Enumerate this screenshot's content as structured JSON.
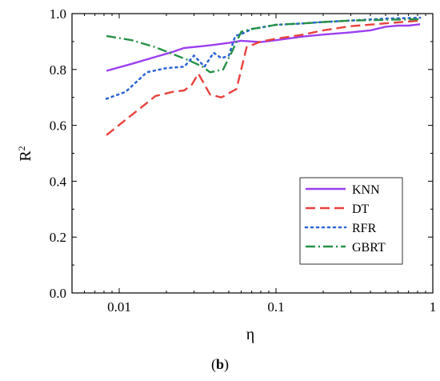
{
  "caption": {
    "open": "(",
    "letter": "b",
    "close": ")"
  },
  "chart_data": {
    "type": "line",
    "title": "",
    "xlabel": "η",
    "ylabel": "R",
    "ylabel_superscript": "2",
    "xscale": "log",
    "xlim": [
      0.005,
      1
    ],
    "ylim": [
      0.0,
      1.0
    ],
    "x_ticks": [
      0.01,
      0.1,
      1
    ],
    "x_tick_labels": [
      "0.01",
      "0.1",
      "1"
    ],
    "y_ticks": [
      0.0,
      0.2,
      0.4,
      0.6,
      0.8,
      1.0
    ],
    "y_tick_labels": [
      "0.0",
      "0.2",
      "0.4",
      "0.6",
      "0.8",
      "1.0"
    ],
    "grid": false,
    "legend_position": "lower-right",
    "series": [
      {
        "name": "KNN",
        "color": "#9b3ff0",
        "dash": "solid",
        "x": [
          0.0083,
          0.012,
          0.017,
          0.022,
          0.026,
          0.032,
          0.04,
          0.05,
          0.06,
          0.08,
          0.1,
          0.15,
          0.2,
          0.3,
          0.4,
          0.5,
          0.6,
          0.7,
          0.83
        ],
        "y": [
          0.795,
          0.82,
          0.845,
          0.863,
          0.877,
          0.882,
          0.888,
          0.895,
          0.903,
          0.898,
          0.905,
          0.918,
          0.925,
          0.933,
          0.94,
          0.953,
          0.957,
          0.957,
          0.962
        ]
      },
      {
        "name": "DT",
        "color": "#e8423e",
        "dash": "dashed",
        "x": [
          0.0083,
          0.011,
          0.015,
          0.017,
          0.022,
          0.026,
          0.029,
          0.032,
          0.038,
          0.045,
          0.052,
          0.056,
          0.065,
          0.08,
          0.1,
          0.15,
          0.2,
          0.3,
          0.5,
          0.83
        ],
        "y": [
          0.565,
          0.62,
          0.68,
          0.705,
          0.72,
          0.725,
          0.745,
          0.785,
          0.71,
          0.7,
          0.72,
          0.73,
          0.88,
          0.9,
          0.91,
          0.925,
          0.94,
          0.955,
          0.965,
          0.975
        ]
      },
      {
        "name": "RFR",
        "color": "#2c66d6",
        "dash": "dotted",
        "x": [
          0.0083,
          0.011,
          0.015,
          0.02,
          0.026,
          0.03,
          0.035,
          0.04,
          0.045,
          0.05,
          0.055,
          0.062,
          0.07,
          0.08,
          0.1,
          0.15,
          0.2,
          0.3,
          0.5,
          0.83
        ],
        "y": [
          0.695,
          0.72,
          0.79,
          0.805,
          0.81,
          0.85,
          0.81,
          0.86,
          0.84,
          0.85,
          0.92,
          0.93,
          0.945,
          0.95,
          0.96,
          0.965,
          0.97,
          0.975,
          0.982,
          0.985
        ]
      },
      {
        "name": "GBRT",
        "color": "#259146",
        "dash": "dashdot",
        "x": [
          0.0083,
          0.012,
          0.017,
          0.022,
          0.028,
          0.034,
          0.038,
          0.042,
          0.046,
          0.052,
          0.06,
          0.07,
          0.08,
          0.1,
          0.15,
          0.2,
          0.3,
          0.5,
          0.83
        ],
        "y": [
          0.92,
          0.905,
          0.88,
          0.855,
          0.832,
          0.81,
          0.79,
          0.795,
          0.8,
          0.86,
          0.935,
          0.945,
          0.95,
          0.96,
          0.965,
          0.97,
          0.975,
          0.978,
          0.98
        ]
      }
    ]
  }
}
